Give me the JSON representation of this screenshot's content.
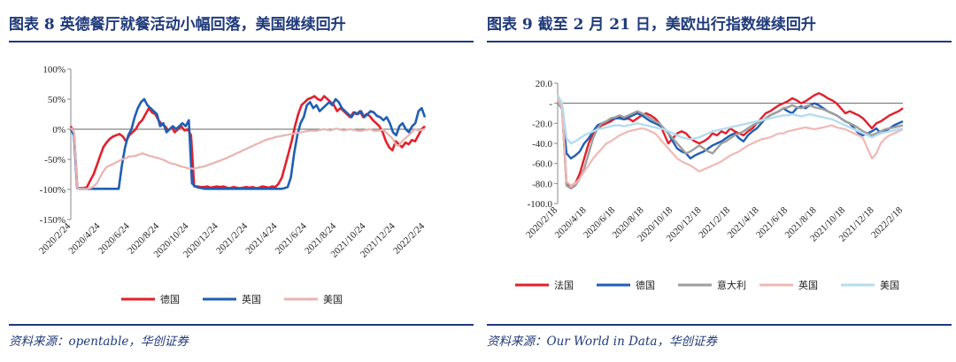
{
  "left": {
    "title": "图表 8   英德餐厅就餐活动小幅回落，美国继续回升",
    "source": "资料来源：opentable，华创证券",
    "chart_data": {
      "type": "line",
      "ylim": [
        -150,
        100
      ],
      "yticks": [
        100,
        50,
        0,
        -50,
        -100,
        -150
      ],
      "ytick_labels": [
        "100%",
        "50%",
        "0%",
        "-50%",
        "-100%",
        "-150%"
      ],
      "xtick_labels": [
        "2020/2/24",
        "2020/4/24",
        "2020/6/24",
        "2020/8/24",
        "2020/10/24",
        "2020/12/24",
        "2021/2/24",
        "2021/4/24",
        "2021/6/24",
        "2021/8/24",
        "2021/10/24",
        "2021/12/24",
        "2022/2/24"
      ],
      "series": [
        {
          "name": "德国",
          "color": "#e3202a",
          "width": 2.6,
          "values": [
            5,
            -10,
            -98,
            -98,
            -98,
            -96,
            -85,
            -75,
            -60,
            -45,
            -30,
            -22,
            -16,
            -12,
            -10,
            -8,
            -12,
            -20,
            -10,
            -5,
            0,
            10,
            15,
            25,
            35,
            28,
            25,
            15,
            8,
            5,
            -2,
            3,
            -5,
            0,
            5,
            -2,
            0,
            -10,
            -95,
            -95,
            -96,
            -96,
            -95,
            -97,
            -96,
            -95,
            -96,
            -95,
            -97,
            -98,
            -96,
            -97,
            -98,
            -97,
            -96,
            -97,
            -96,
            -98,
            -97,
            -95,
            -96,
            -97,
            -95,
            -96,
            -90,
            -80,
            -60,
            -40,
            -20,
            5,
            25,
            40,
            45,
            50,
            52,
            55,
            50,
            48,
            55,
            50,
            45,
            40,
            30,
            35,
            30,
            25,
            20,
            28,
            25,
            30,
            20,
            25,
            22,
            15,
            10,
            5,
            -5,
            -20,
            -30,
            -35,
            -20,
            -25,
            -30,
            -22,
            -25,
            -18,
            -20,
            -10,
            0,
            5
          ]
        },
        {
          "name": "英国",
          "color": "#1f5fb4",
          "width": 2.6,
          "values": [
            0,
            -10,
            -98,
            -99,
            -99,
            -99,
            -99,
            -99,
            -99,
            -99,
            -99,
            -99,
            -99,
            -99,
            -99,
            -99,
            -60,
            -30,
            -10,
            0,
            20,
            35,
            45,
            50,
            40,
            35,
            30,
            25,
            5,
            10,
            -5,
            0,
            5,
            0,
            5,
            10,
            5,
            15,
            -90,
            -95,
            -97,
            -98,
            -99,
            -99,
            -99,
            -99,
            -99,
            -99,
            -99,
            -99,
            -99,
            -99,
            -99,
            -99,
            -99,
            -99,
            -99,
            -99,
            -99,
            -99,
            -99,
            -99,
            -99,
            -99,
            -99,
            -99,
            -99,
            -98,
            -96,
            -80,
            -40,
            -10,
            10,
            20,
            40,
            45,
            35,
            40,
            30,
            35,
            40,
            45,
            40,
            50,
            45,
            35,
            30,
            25,
            20,
            28,
            25,
            30,
            20,
            25,
            30,
            28,
            22,
            20,
            15,
            20,
            10,
            -5,
            -10,
            5,
            10,
            0,
            -5,
            5,
            10,
            30,
            35,
            20
          ]
        },
        {
          "name": "美国",
          "color": "#e8b4b0",
          "width": 2.2,
          "values": [
            2,
            -5,
            -98,
            -99,
            -99,
            -99,
            -98,
            -95,
            -90,
            -80,
            -70,
            -63,
            -60,
            -58,
            -55,
            -52,
            -50,
            -48,
            -45,
            -45,
            -44,
            -42,
            -40,
            -42,
            -44,
            -45,
            -47,
            -48,
            -50,
            -52,
            -55,
            -57,
            -58,
            -60,
            -62,
            -63,
            -65,
            -65,
            -66,
            -64,
            -63,
            -62,
            -60,
            -58,
            -56,
            -54,
            -52,
            -50,
            -48,
            -45,
            -43,
            -40,
            -38,
            -35,
            -33,
            -30,
            -28,
            -25,
            -23,
            -20,
            -18,
            -16,
            -15,
            -13,
            -12,
            -11,
            -10,
            -9,
            -8,
            -7,
            -6,
            -5,
            -4,
            -3,
            -2,
            -3,
            -2,
            -1,
            0,
            -1,
            -2,
            0,
            1,
            -1,
            -2,
            -1,
            0,
            -1,
            -2,
            -3,
            -2,
            -1,
            0,
            -2,
            -3,
            -2,
            -1,
            -5,
            -10,
            -15,
            -25,
            -28,
            -20,
            -15,
            -10,
            -5,
            0,
            -2,
            -1,
            0
          ]
        }
      ],
      "legend_position": "bottom"
    }
  },
  "right": {
    "title": "图表 9   截至 2 月 21 日，美欧出行指数继续回升",
    "source": "资料来源：Our World in Data，华创证券",
    "chart_data": {
      "type": "line",
      "ylim": [
        -100,
        20
      ],
      "yticks": [
        20,
        0,
        -20,
        -40,
        -60,
        -80,
        -100
      ],
      "ytick_labels": [
        "20.0",
        "-",
        "-20.0",
        "-40.0",
        "-60.0",
        "-80.0",
        "-100.0"
      ],
      "xtick_labels": [
        "2020/2/18",
        "2020/4/18",
        "2020/6/18",
        "2020/8/18",
        "2020/10/18",
        "2020/12/18",
        "2021/2/18",
        "2021/4/18",
        "2021/6/18",
        "2021/8/18",
        "2021/10/18",
        "2021/12/18",
        "2022/2/18"
      ],
      "series": [
        {
          "name": "法国",
          "color": "#e3202a",
          "width": 2.4,
          "values": [
            0,
            -5,
            -80,
            -82,
            -80,
            -70,
            -55,
            -40,
            -30,
            -25,
            -22,
            -20,
            -18,
            -15,
            -14,
            -16,
            -15,
            -18,
            -15,
            -12,
            -10,
            -12,
            -15,
            -20,
            -30,
            -40,
            -35,
            -30,
            -28,
            -30,
            -35,
            -38,
            -40,
            -38,
            -35,
            -30,
            -32,
            -28,
            -30,
            -25,
            -28,
            -30,
            -32,
            -28,
            -25,
            -20,
            -15,
            -10,
            -8,
            -5,
            -2,
            0,
            2,
            5,
            3,
            0,
            2,
            5,
            8,
            10,
            8,
            5,
            3,
            0,
            -5,
            -10,
            -8,
            -10,
            -12,
            -15,
            -20,
            -25,
            -20,
            -18,
            -15,
            -12,
            -10,
            -8,
            -5
          ]
        },
        {
          "name": "德国",
          "color": "#1f5fb4",
          "width": 2.4,
          "values": [
            0,
            -5,
            -50,
            -55,
            -52,
            -48,
            -40,
            -35,
            -28,
            -22,
            -20,
            -18,
            -16,
            -15,
            -15,
            -16,
            -14,
            -12,
            -10,
            -12,
            -15,
            -18,
            -20,
            -22,
            -25,
            -30,
            -38,
            -45,
            -48,
            -50,
            -55,
            -52,
            -50,
            -48,
            -45,
            -42,
            -40,
            -38,
            -35,
            -32,
            -30,
            -35,
            -38,
            -32,
            -28,
            -25,
            -20,
            -15,
            -12,
            -10,
            -8,
            -5,
            -8,
            -10,
            -5,
            -3,
            -5,
            -2,
            0,
            -2,
            -5,
            -8,
            -10,
            -12,
            -15,
            -18,
            -20,
            -25,
            -30,
            -32,
            -30,
            -28,
            -25,
            -30,
            -28,
            -25,
            -22,
            -20,
            -18
          ]
        },
        {
          "name": "意大利",
          "color": "#9e9e9e",
          "width": 2.4,
          "values": [
            0,
            -5,
            -82,
            -85,
            -82,
            -75,
            -65,
            -50,
            -35,
            -25,
            -20,
            -18,
            -15,
            -14,
            -12,
            -14,
            -12,
            -10,
            -8,
            -10,
            -12,
            -15,
            -18,
            -20,
            -25,
            -30,
            -35,
            -40,
            -45,
            -50,
            -48,
            -45,
            -42,
            -45,
            -48,
            -50,
            -45,
            -40,
            -38,
            -35,
            -32,
            -30,
            -28,
            -25,
            -22,
            -20,
            -18,
            -15,
            -12,
            -10,
            -8,
            -5,
            -4,
            -2,
            -4,
            -5,
            -3,
            -2,
            -4,
            -5,
            -6,
            -8,
            -10,
            -12,
            -15,
            -18,
            -20,
            -22,
            -25,
            -28,
            -30,
            -32,
            -30,
            -28,
            -26,
            -25,
            -24,
            -23,
            -22
          ]
        },
        {
          "name": "英国",
          "color": "#f0b8b4",
          "width": 2.2,
          "values": [
            5,
            -5,
            -78,
            -82,
            -80,
            -75,
            -68,
            -62,
            -55,
            -50,
            -45,
            -40,
            -38,
            -35,
            -32,
            -30,
            -28,
            -27,
            -26,
            -25,
            -26,
            -28,
            -30,
            -35,
            -40,
            -45,
            -50,
            -55,
            -58,
            -60,
            -62,
            -65,
            -68,
            -66,
            -64,
            -62,
            -60,
            -58,
            -55,
            -52,
            -50,
            -48,
            -45,
            -42,
            -40,
            -38,
            -36,
            -35,
            -34,
            -32,
            -30,
            -30,
            -28,
            -27,
            -26,
            -25,
            -24,
            -25,
            -26,
            -25,
            -24,
            -23,
            -22,
            -24,
            -25,
            -26,
            -28,
            -30,
            -32,
            -35,
            -45,
            -55,
            -50,
            -40,
            -35,
            -32,
            -30,
            -28,
            -26
          ]
        },
        {
          "name": "美国",
          "color": "#b5dcef",
          "width": 2.4,
          "values": [
            8,
            0,
            -35,
            -40,
            -38,
            -35,
            -32,
            -30,
            -28,
            -26,
            -25,
            -24,
            -23,
            -22,
            -22,
            -23,
            -22,
            -21,
            -20,
            -21,
            -22,
            -23,
            -24,
            -25,
            -26,
            -28,
            -30,
            -32,
            -34,
            -35,
            -36,
            -35,
            -34,
            -32,
            -30,
            -28,
            -27,
            -26,
            -25,
            -24,
            -23,
            -22,
            -21,
            -20,
            -19,
            -18,
            -17,
            -16,
            -15,
            -14,
            -13,
            -12,
            -12,
            -11,
            -12,
            -13,
            -12,
            -11,
            -12,
            -13,
            -14,
            -15,
            -16,
            -18,
            -20,
            -22,
            -24,
            -26,
            -28,
            -30,
            -32,
            -34,
            -32,
            -30,
            -29,
            -28,
            -27,
            -26,
            -25
          ]
        }
      ],
      "legend_position": "bottom"
    }
  }
}
